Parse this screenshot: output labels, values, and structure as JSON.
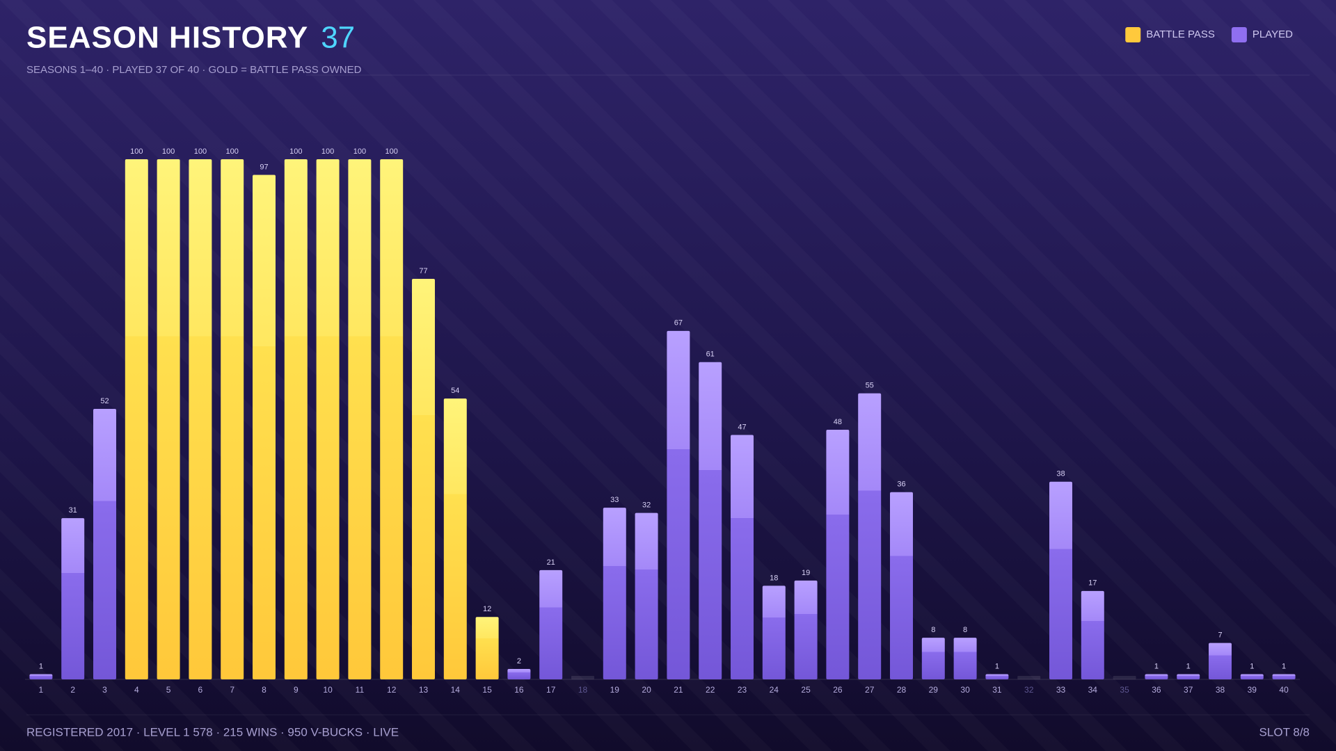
{
  "chart_data": {
    "type": "bar",
    "title": "SEASON HISTORY",
    "title_count": "37",
    "subtitle": "SEASONS 1–40 · PLAYED 37 OF 40 · GOLD = BATTLE PASS OWNED",
    "footer": "REGISTERED 2017 · LEVEL 1 578 · 215 WINS · 950 V-BUCKS · LIVE",
    "slot": "SLOT 8/8",
    "legend": "top-right",
    "ylim": [
      0,
      100
    ],
    "categories": [
      "1",
      "2",
      "3",
      "4",
      "5",
      "6",
      "7",
      "8",
      "9",
      "10",
      "11",
      "12",
      "13",
      "14",
      "15",
      "16",
      "17",
      "18",
      "19",
      "20",
      "21",
      "22",
      "23",
      "24",
      "25",
      "26",
      "27",
      "28",
      "29",
      "30",
      "31",
      "32",
      "33",
      "34",
      "35",
      "36",
      "37",
      "38",
      "39",
      "40"
    ],
    "series": [
      {
        "name": "BATTLE PASS",
        "color": "#ffc93c",
        "values": [
          null,
          null,
          null,
          100,
          100,
          100,
          100,
          97,
          100,
          100,
          100,
          100,
          77,
          54,
          12,
          null,
          null,
          null,
          null,
          null,
          null,
          null,
          null,
          null,
          null,
          null,
          null,
          null,
          null,
          null,
          null,
          null,
          null,
          null,
          null,
          null,
          null,
          null,
          null,
          null
        ]
      },
      {
        "name": "PLAYED",
        "color": "#8f6ff0",
        "values": [
          1,
          31,
          52,
          null,
          null,
          null,
          null,
          null,
          null,
          null,
          null,
          null,
          null,
          null,
          null,
          2,
          21,
          null,
          33,
          32,
          67,
          61,
          47,
          18,
          19,
          48,
          55,
          36,
          8,
          8,
          1,
          null,
          38,
          17,
          null,
          1,
          1,
          7,
          1,
          1
        ]
      }
    ]
  }
}
